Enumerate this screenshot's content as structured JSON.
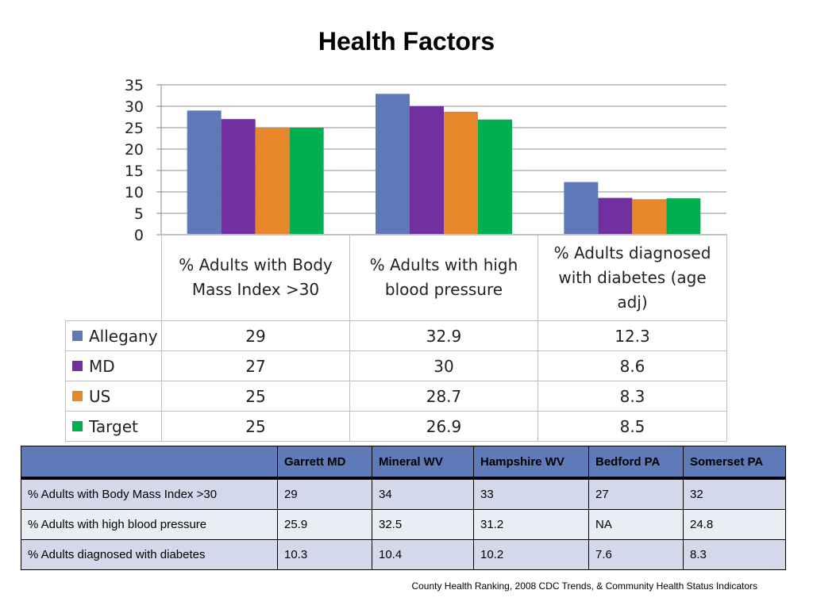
{
  "title": "Health Factors",
  "chart_data": {
    "type": "bar",
    "title": "Health Factors",
    "categories": [
      "% Adults with Body Mass Index >30",
      "% Adults with high blood pressure",
      "% Adults diagnosed with diabetes (age adj)"
    ],
    "category_lines": [
      [
        "% Adults with Body",
        "Mass Index >30"
      ],
      [
        "% Adults with high",
        "blood pressure"
      ],
      [
        "% Adults diagnosed",
        "with diabetes (age",
        "adj)"
      ]
    ],
    "series": [
      {
        "name": "Allegany",
        "color": "#5f78b7",
        "values": [
          29,
          32.9,
          12.3
        ],
        "labels": [
          "29",
          "32.9",
          "12.3"
        ]
      },
      {
        "name": "MD",
        "color": "#7030a0",
        "values": [
          27,
          30,
          8.6
        ],
        "labels": [
          "27",
          "30",
          "8.6"
        ]
      },
      {
        "name": "US",
        "color": "#e8862a",
        "values": [
          25,
          28.7,
          8.3
        ],
        "labels": [
          "25",
          "28.7",
          "8.3"
        ]
      },
      {
        "name": "Target",
        "color": "#00b050",
        "values": [
          25,
          26.9,
          8.5
        ],
        "labels": [
          "25",
          "26.9",
          "8.5"
        ]
      }
    ],
    "ylim": [
      0,
      35
    ],
    "yticks": [
      "0",
      "5",
      "10",
      "15",
      "20",
      "25",
      "30",
      "35"
    ],
    "grid": true,
    "legend": "data-table"
  },
  "comparison_table": {
    "header_color": "#5e7ab8",
    "columns": [
      "",
      "Garrett MD",
      "Mineral WV",
      "Hampshire WV",
      "Bedford PA",
      "Somerset PA"
    ],
    "rows": [
      [
        "% Adults with Body Mass Index  >30",
        "29",
        "34",
        "33",
        "27",
        "32"
      ],
      [
        "% Adults with high blood pressure",
        "25.9",
        "32.5",
        "31.2",
        "NA",
        "24.8"
      ],
      [
        "% Adults diagnosed with diabetes",
        "10.3",
        "10.4",
        "10.2",
        "7.6",
        "8.3"
      ]
    ]
  },
  "source": "County Health Ranking, 2008 CDC Trends, & Community Health Status Indicators"
}
